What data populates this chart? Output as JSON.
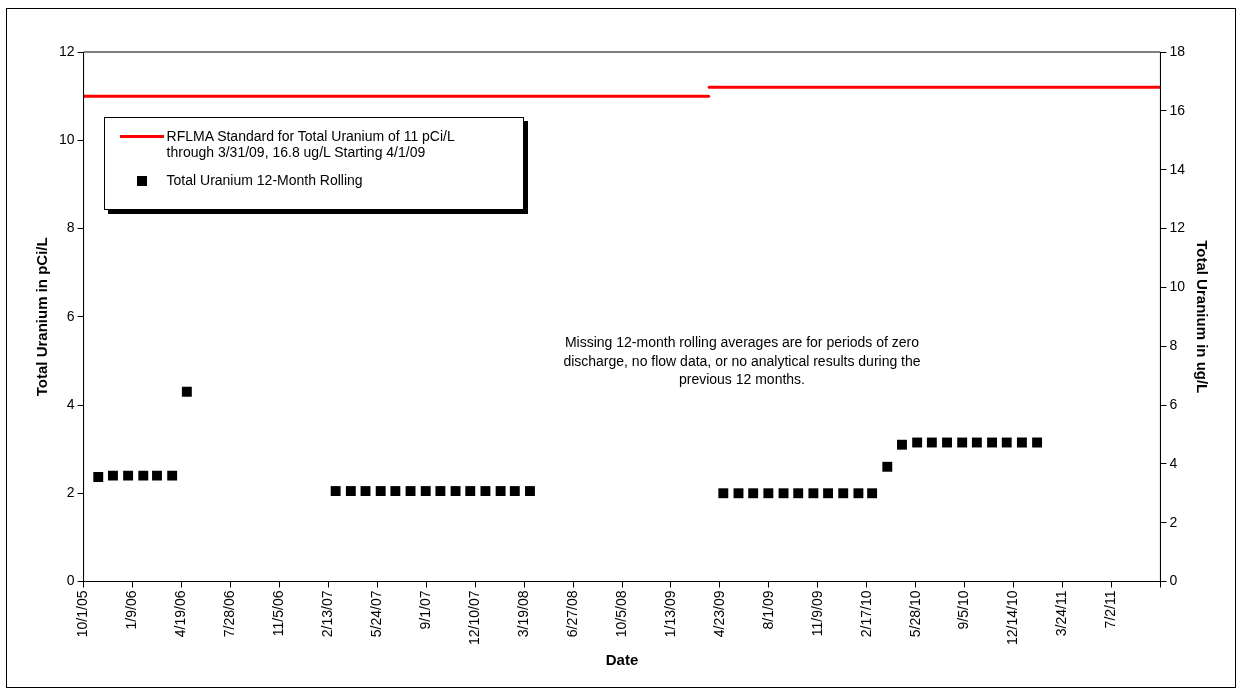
{
  "chart_data": {
    "type": "scatter",
    "xlabel": "Date",
    "ylabel": "Total Uranium in pCi/L",
    "y2label": "Total Uranium in ug/L",
    "xlim": [
      "2005-10-01",
      "2011-10-10"
    ],
    "xticks": [
      {
        "value": "2005-10-01",
        "label": "10/1/05"
      },
      {
        "value": "2006-01-09",
        "label": "1/9/06"
      },
      {
        "value": "2006-04-19",
        "label": "4/19/06"
      },
      {
        "value": "2006-07-28",
        "label": "7/28/06"
      },
      {
        "value": "2006-11-05",
        "label": "11/5/06"
      },
      {
        "value": "2007-02-13",
        "label": "2/13/07"
      },
      {
        "value": "2007-05-24",
        "label": "5/24/07"
      },
      {
        "value": "2007-09-01",
        "label": "9/1/07"
      },
      {
        "value": "2007-12-10",
        "label": "12/10/07"
      },
      {
        "value": "2008-03-19",
        "label": "3/19/08"
      },
      {
        "value": "2008-06-27",
        "label": "6/27/08"
      },
      {
        "value": "2008-10-05",
        "label": "10/5/08"
      },
      {
        "value": "2009-01-13",
        "label": "1/13/09"
      },
      {
        "value": "2009-04-23",
        "label": "4/23/09"
      },
      {
        "value": "2009-08-01",
        "label": "8/1/09"
      },
      {
        "value": "2009-11-09",
        "label": "11/9/09"
      },
      {
        "value": "2010-02-17",
        "label": "2/17/10"
      },
      {
        "value": "2010-05-28",
        "label": "5/28/10"
      },
      {
        "value": "2010-09-05",
        "label": "9/5/10"
      },
      {
        "value": "2010-12-14",
        "label": "12/14/10"
      },
      {
        "value": "2011-03-24",
        "label": "3/24/11"
      },
      {
        "value": "2011-07-02",
        "label": "7/2/11"
      },
      {
        "value": "2011-10-10",
        "label": null
      }
    ],
    "ylim": [
      0,
      12
    ],
    "yticks": [
      0,
      2,
      4,
      6,
      8,
      10,
      12
    ],
    "y2lim": [
      0,
      18
    ],
    "y2ticks": [
      0,
      2,
      4,
      6,
      8,
      10,
      12,
      14,
      16,
      18
    ],
    "grid": false,
    "legend": "top left",
    "annotations": [
      "Missing 12-month rolling averages are for periods of zero discharge, no flow data, or no analytical results during the previous 12 months."
    ],
    "series": [
      {
        "name": "RFLMA Standard for Total Uranium of 11 pCi/L through 3/31/09, 16.8 ug/L Starting 4/1/09",
        "type": "line",
        "color": "#ff0000",
        "marker": "none",
        "x": [
          "2005-10-01",
          "2009-03-31"
        ],
        "values": [
          11,
          11
        ]
      },
      {
        "type": "line",
        "axis": "y2",
        "color": "#ff0000",
        "marker": "none",
        "x": [
          "2009-04-01",
          "2011-10-10"
        ],
        "values": [
          16.8,
          16.8
        ]
      },
      {
        "name": "Total Uranium 12-Month Rolling",
        "type": "scatter",
        "color": "#000000",
        "marker": "square",
        "x": [
          "2005-10-31",
          "2005-11-30",
          "2005-12-31",
          "2006-01-31",
          "2006-02-28",
          "2006-03-31",
          "2006-04-30",
          "2007-02-28",
          "2007-03-31",
          "2007-04-30",
          "2007-05-31",
          "2007-06-30",
          "2007-07-31",
          "2007-08-31",
          "2007-09-30",
          "2007-10-31",
          "2007-11-30",
          "2007-12-31",
          "2008-01-31",
          "2008-02-29",
          "2008-03-31",
          "2009-04-30",
          "2009-05-31",
          "2009-06-30",
          "2009-07-31",
          "2009-08-31",
          "2009-09-30",
          "2009-10-31",
          "2009-11-30",
          "2009-12-31",
          "2010-01-31",
          "2010-02-28",
          "2010-03-31",
          "2010-04-30",
          "2010-05-31",
          "2010-06-30",
          "2010-07-31",
          "2010-08-31",
          "2010-09-30",
          "2010-10-31",
          "2010-11-30",
          "2010-12-31",
          "2011-01-31"
        ],
        "values": [
          2.37,
          2.4,
          2.4,
          2.4,
          2.4,
          2.4,
          4.3,
          2.05,
          2.05,
          2.05,
          2.05,
          2.05,
          2.05,
          2.05,
          2.05,
          2.05,
          2.05,
          2.05,
          2.05,
          2.05,
          2.05,
          2.0,
          2.0,
          2.0,
          2.0,
          2.0,
          2.0,
          2.0,
          2.0,
          2.0,
          2.0,
          2.0,
          2.6,
          3.1,
          3.15,
          3.15,
          3.15,
          3.15,
          3.15,
          3.15,
          3.15,
          3.15,
          3.15
        ]
      }
    ]
  }
}
